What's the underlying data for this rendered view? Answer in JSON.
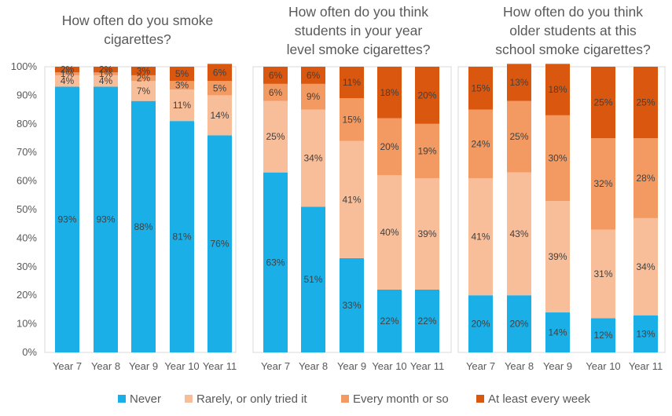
{
  "chart_data": {
    "type": "bar",
    "stacked": true,
    "y_axis": {
      "ylim": [
        0,
        100
      ],
      "ticks": [
        "0%",
        "10%",
        "20%",
        "30%",
        "40%",
        "50%",
        "60%",
        "70%",
        "80%",
        "90%",
        "100%"
      ],
      "grid": false
    },
    "legend": {
      "position": "bottom",
      "entries": [
        "Never",
        "Rarely, or only tried it",
        "Every month or so",
        "At least every week"
      ]
    },
    "series_colors": [
      "#1AAFE6",
      "#F8BE9A",
      "#F39A63",
      "#D9570F"
    ],
    "panels": [
      {
        "title_lines": [
          "How often do you smoke",
          "cigarettes?"
        ],
        "categories": [
          "Year 7",
          "Year 8",
          "Year 9",
          "Year 10",
          "Year 11"
        ],
        "series": [
          {
            "name": "Never",
            "values": [
              93,
              93,
              88,
              81,
              76
            ]
          },
          {
            "name": "Rarely, or only tried it",
            "values": [
              4,
              4,
              7,
              11,
              14
            ]
          },
          {
            "name": "Every month or so",
            "values": [
              1,
              1,
              2,
              3,
              5
            ]
          },
          {
            "name": "At least every week",
            "values": [
              2,
              2,
              3,
              5,
              6
            ]
          }
        ],
        "labels": [
          [
            "93%",
            "93%",
            "88%",
            "81%",
            "76%"
          ],
          [
            "4%",
            "4%",
            "7%",
            "11%",
            "14%"
          ],
          [
            "1%",
            "1%",
            "2%",
            "3%",
            "5%"
          ],
          [
            "2%",
            "2%",
            "3%",
            "5%",
            "6%"
          ]
        ]
      },
      {
        "title_lines": [
          "How often do you think",
          "students in your year",
          "level smoke cigarettes?"
        ],
        "categories": [
          "Year 7",
          "Year 8",
          "Year 9",
          "Year 10",
          "Year 11"
        ],
        "series": [
          {
            "name": "Never",
            "values": [
              63,
              51,
              33,
              22,
              22
            ]
          },
          {
            "name": "Rarely, or only tried it",
            "values": [
              25,
              34,
              41,
              40,
              39
            ]
          },
          {
            "name": "Every month or so",
            "values": [
              6,
              9,
              15,
              20,
              19
            ]
          },
          {
            "name": "At least every week",
            "values": [
              6,
              6,
              11,
              18,
              20
            ]
          }
        ],
        "labels": [
          [
            "63%",
            "51%",
            "33%",
            "22%",
            "22%"
          ],
          [
            "25%",
            "34%",
            "41%",
            "40%",
            "39%"
          ],
          [
            "6%",
            "9%",
            "15%",
            "20%",
            "19%"
          ],
          [
            "6%",
            "6%",
            "11%",
            "18%",
            "20%"
          ]
        ]
      },
      {
        "title_lines": [
          "How often do you think",
          "older students at this",
          "school smoke cigarettes?"
        ],
        "categories": [
          "Year 7",
          "Year 8",
          "Year 9",
          "Year 10",
          "Year 11"
        ],
        "series": [
          {
            "name": "Never",
            "values": [
              20,
              20,
              14,
              12,
              13
            ]
          },
          {
            "name": "Rarely, or only tried it",
            "values": [
              41,
              43,
              39,
              31,
              34
            ]
          },
          {
            "name": "Every month or so",
            "values": [
              24,
              25,
              30,
              32,
              28
            ]
          },
          {
            "name": "At least every week",
            "values": [
              15,
              13,
              18,
              25,
              25
            ]
          }
        ],
        "labels": [
          [
            "20%",
            "20%",
            "14%",
            "12%",
            "13%"
          ],
          [
            "41%",
            "43%",
            "39%",
            "31%",
            "34%"
          ],
          [
            "24%",
            "25%",
            "30%",
            "32%",
            "28%"
          ],
          [
            "15%",
            "13%",
            "18%",
            "25%",
            "25%"
          ]
        ]
      }
    ]
  }
}
